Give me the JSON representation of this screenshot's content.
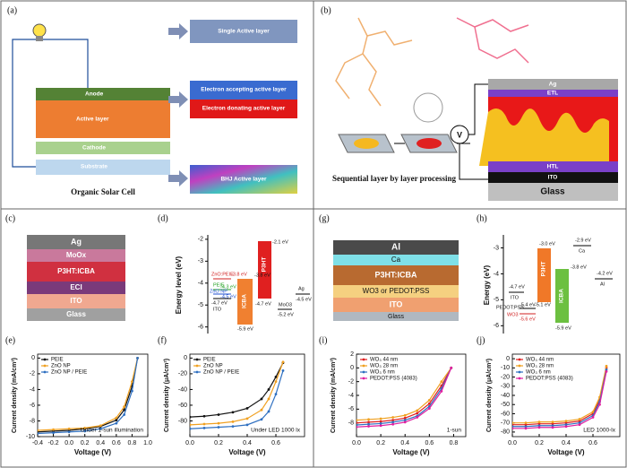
{
  "panels": {
    "a": {
      "label": "(a)",
      "layers": [
        "Anode",
        "Active layer",
        "Cathode",
        "Substrate"
      ],
      "options": [
        "Single Active layer",
        "Electron accepting active layer",
        "Electron donating active layer",
        "BHJ Active layer"
      ],
      "caption": "Organic Solar Cell"
    },
    "b": {
      "label": "(b)",
      "layers": [
        "Ag",
        "ETL",
        "HTL",
        "ITO",
        "Glass"
      ],
      "meter": "V",
      "caption": "Sequential layer by layer processing"
    },
    "c": {
      "label": "(c)",
      "layers": [
        "Ag",
        "MoOx",
        "P3HT:ICBA",
        "ECI",
        "ITO",
        "Glass"
      ]
    },
    "d": {
      "label": "(d)",
      "axis_label": "Energy level (eV)",
      "ylim": [
        -6.3,
        -1.8
      ],
      "yticks": [
        -2,
        -3,
        -4,
        -5,
        -6
      ],
      "texts": [
        "ZnO:PEIE",
        "-3.8 eV",
        "PEIE",
        "-4.3 eV",
        "ZnO NP",
        "-4.5 eV",
        "-4.7 eV",
        "ITO",
        "ICBA",
        "-3.8 eV",
        "-5.9 eV",
        "P3HT",
        "-2.1 eV",
        "-4.7 eV",
        "MoO3",
        "-5.2 eV",
        "Ag",
        "-4.5 eV"
      ]
    },
    "e": {
      "label": "(e)",
      "chart": {
        "type": "line",
        "x_label": "Voltage (V)",
        "y_label": "Current density (mA/cm²)",
        "x": [
          -0.4,
          -0.2,
          0,
          0.2,
          0.4,
          0.6,
          0.7,
          0.8,
          0.87
        ],
        "xlim": [
          -0.4,
          1.0
        ],
        "xticks": [
          -0.4,
          -0.2,
          {
            "value": 0,
            "label": "0.0"
          },
          0.2,
          0.4,
          0.6,
          0.8,
          {
            "value": 1,
            "label": "1.0"
          }
        ],
        "ylim": [
          -10,
          0.5
        ],
        "yticks": [
          0,
          -2,
          -4,
          -6,
          -8,
          -10
        ],
        "series": [
          {
            "name": "PEIE",
            "color": "#111111",
            "values": [
              -9.4,
              -9.3,
              -9.2,
              -9.0,
              -8.7,
              -7.9,
              -6.6,
              -3.6,
              0
            ]
          },
          {
            "name": "ZnO NP",
            "color": "#f0a020",
            "values": [
              -9.2,
              -9.1,
              -9.0,
              -8.9,
              -8.6,
              -7.6,
              -6.2,
              -3.0,
              0
            ]
          },
          {
            "name": "ZnO NP / PEIE",
            "color": "#2e6fc0",
            "values": [
              -9.6,
              -9.5,
              -9.4,
              -9.3,
              -9.0,
              -8.3,
              -7.2,
              -4.2,
              0
            ]
          }
        ],
        "annotation": "Under 1-sun illumination"
      }
    },
    "f": {
      "label": "(f)",
      "chart": {
        "type": "line",
        "x_label": "Voltage (V)",
        "y_label": "Current density (μA/cm²)",
        "x": [
          0,
          0.1,
          0.2,
          0.3,
          0.4,
          0.5,
          0.55,
          0.6,
          0.65
        ],
        "xlim": [
          0,
          0.8
        ],
        "xticks": [
          {
            "value": 0,
            "label": "0.0"
          },
          0.2,
          0.4,
          0.6
        ],
        "ylim": [
          -100,
          5
        ],
        "yticks": [
          0,
          -20,
          -40,
          -60,
          -80
        ],
        "series": [
          {
            "name": "PEIE",
            "color": "#111111",
            "values": [
              -75,
              -74,
              -72,
              -69,
              -64,
              -52,
              -40,
              -24,
              -6
            ]
          },
          {
            "name": "ZnO NP",
            "color": "#f0a020",
            "values": [
              -85,
              -84,
              -83,
              -81,
              -77,
              -66,
              -52,
              -30,
              -5
            ]
          },
          {
            "name": "ZnO NP / PEIE",
            "color": "#2e6fc0",
            "values": [
              -90,
              -89,
              -88,
              -87,
              -85,
              -78,
              -68,
              -46,
              -16
            ]
          }
        ],
        "annotation": "Under LED 1000 lx"
      }
    },
    "g": {
      "label": "(g)",
      "layers": [
        "Al",
        "Ca",
        "P3HT:ICBA",
        "WO3 or PEDOT:PSS",
        "ITO",
        "Glass"
      ]
    },
    "h": {
      "label": "(h)",
      "axis_label": "Energy (eV)",
      "ylim": [
        -6.3,
        -2.5
      ],
      "yticks": [
        -3,
        -4,
        -5,
        -6
      ],
      "texts": [
        "-3.0 eV",
        "P3HT",
        "-2.9 eV",
        "Ca",
        "-4.7 eV",
        "ITO",
        "PEDOT:PSS",
        "-5.4 eV",
        "-5.1 eV",
        "WO3",
        "-5.6 eV",
        "-3.8 eV",
        "ICBA",
        "-4.2 eV",
        "Al",
        "-5.9 eV"
      ]
    },
    "i": {
      "label": "(i)",
      "chart": {
        "type": "line",
        "x_label": "Voltage (V)",
        "y_label": "Current density (mA/cm²)",
        "x": [
          0,
          0.1,
          0.2,
          0.3,
          0.4,
          0.5,
          0.6,
          0.7,
          0.78
        ],
        "xlim": [
          0,
          0.9
        ],
        "xticks": [
          {
            "value": 0,
            "label": "0.0"
          },
          0.2,
          0.4,
          0.6,
          0.8
        ],
        "ylim": [
          -10,
          2
        ],
        "yticks": [
          2,
          0,
          -2,
          -4,
          -6,
          -8
        ],
        "series": [
          {
            "name": "WO₃ 44 nm",
            "color": "#e02020",
            "values": [
              -8.0,
              -7.9,
              -7.8,
              -7.6,
              -7.3,
              -6.6,
              -5.2,
              -2.6,
              0
            ]
          },
          {
            "name": "WO₃ 28 nm",
            "color": "#f0a020",
            "values": [
              -7.6,
              -7.5,
              -7.4,
              -7.2,
              -6.9,
              -6.2,
              -4.7,
              -2.0,
              0
            ]
          },
          {
            "name": "WO₃ 6 nm",
            "color": "#2e6fc0",
            "values": [
              -8.3,
              -8.2,
              -8.1,
              -7.9,
              -7.6,
              -7.0,
              -5.6,
              -3.0,
              0
            ]
          },
          {
            "name": "PEDOT:PSS (4083)",
            "color": "#e020a0",
            "values": [
              -8.6,
              -8.5,
              -8.4,
              -8.2,
              -7.9,
              -7.2,
              -5.9,
              -3.4,
              0
            ]
          }
        ],
        "annotation": "1-sun"
      }
    },
    "j": {
      "label": "(j)",
      "chart": {
        "type": "line",
        "x_label": "Voltage (V)",
        "y_label": "Current density (μA/cm²)",
        "x": [
          0,
          0.1,
          0.2,
          0.3,
          0.4,
          0.5,
          0.6,
          0.65,
          0.7
        ],
        "xlim": [
          0,
          0.8
        ],
        "xticks": [
          {
            "value": 0,
            "label": "0.0"
          },
          0.2,
          0.4,
          0.6
        ],
        "ylim": [
          -85,
          5
        ],
        "yticks": [
          0,
          -10,
          -20,
          -30,
          -40,
          -50,
          -60,
          -70,
          -80
        ],
        "series": [
          {
            "name": "WO₃ 44 nm",
            "color": "#e02020",
            "values": [
              -72,
              -72,
              -71,
              -71,
              -70,
              -68,
              -60,
              -45,
              -10
            ]
          },
          {
            "name": "WO₃ 28 nm",
            "color": "#f0a020",
            "values": [
              -70,
              -70,
              -69,
              -69,
              -68,
              -66,
              -58,
              -42,
              -8
            ]
          },
          {
            "name": "WO₃ 6 nm",
            "color": "#2e6fc0",
            "values": [
              -74,
              -74,
              -73,
              -73,
              -72,
              -70,
              -62,
              -47,
              -12
            ]
          },
          {
            "name": "PEDOT:PSS (4083)",
            "color": "#e020a0",
            "values": [
              -76,
              -76,
              -75,
              -75,
              -74,
              -72,
              -64,
              -50,
              -14
            ]
          }
        ],
        "annotation": "LED 1000-lx"
      }
    }
  }
}
